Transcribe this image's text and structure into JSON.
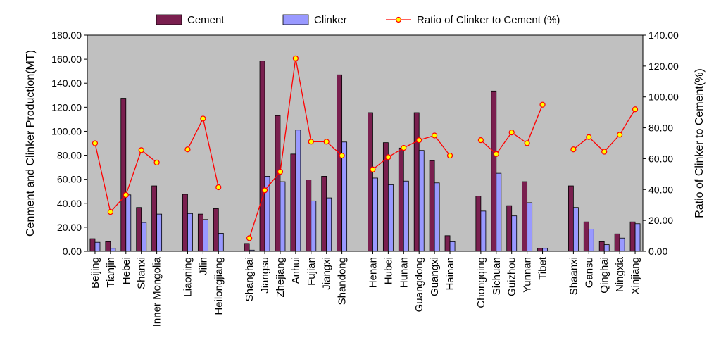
{
  "chart_data": {
    "type": "bar",
    "categories": [
      "Beijing",
      "Tianjin",
      "Hebei",
      "Shanxi",
      "Inner Mongolia",
      null,
      "Liaoning",
      "Jilin",
      "Heilongjiang",
      null,
      "Shanghai",
      "Jiangsu",
      "Zhejiang",
      "Anhui",
      "Fujian",
      "Jiangxi",
      "Shandong",
      null,
      "Henan",
      "Hubei",
      "Hunan",
      "Guangdong",
      "Guangxi",
      "Hainan",
      null,
      "Chongqing",
      "Sichuan",
      "Guizhou",
      "Yunnan",
      "Tibet",
      null,
      "Shaanxi",
      "Gansu",
      "Qinghai",
      "Ningxia",
      "Xinjiang"
    ],
    "series": [
      {
        "name": "Cement",
        "type": "bar",
        "axis": "left",
        "values": [
          10.5,
          8.0,
          127.5,
          36.5,
          54.5,
          null,
          47.5,
          31.0,
          35.5,
          null,
          6.5,
          158.5,
          113.0,
          81.0,
          59.5,
          62.5,
          147.0,
          null,
          115.5,
          90.5,
          86.0,
          115.5,
          75.5,
          13.0,
          null,
          46.0,
          133.5,
          38.0,
          58.0,
          2.5,
          null,
          54.5,
          24.5,
          8.0,
          14.5,
          24.5
        ]
      },
      {
        "name": "Clinker",
        "type": "bar",
        "axis": "left",
        "values": [
          7.5,
          2.5,
          47.0,
          24.0,
          31.0,
          null,
          31.5,
          26.5,
          15.0,
          null,
          1.0,
          62.5,
          58.0,
          101.0,
          42.0,
          44.5,
          91.0,
          null,
          61.0,
          55.5,
          58.5,
          84.0,
          57.0,
          8.0,
          null,
          33.5,
          65.0,
          29.5,
          40.5,
          2.5,
          null,
          36.5,
          18.5,
          5.5,
          11.0,
          23.0
        ]
      },
      {
        "name": "Ratio of Clinker to Cement (%)",
        "type": "line",
        "axis": "right",
        "values": [
          70.0,
          25.5,
          36.5,
          65.5,
          57.5,
          null,
          66.0,
          86.0,
          41.5,
          null,
          8.5,
          39.5,
          51.5,
          125.0,
          71.0,
          71.0,
          62.0,
          null,
          53.0,
          61.0,
          67.0,
          72.0,
          75.0,
          62.0,
          null,
          72.0,
          63.0,
          77.0,
          70.0,
          95.0,
          null,
          66.0,
          74.0,
          64.5,
          75.5,
          92.0
        ]
      }
    ],
    "ylabel": "Cenment and Clinker Production(MT)",
    "y2label": "Ratio of Clinker to Cement(%)",
    "ylim": [
      0,
      180
    ],
    "y2lim": [
      0,
      140
    ],
    "yticks": [
      "0.00",
      "20.00",
      "40.00",
      "60.00",
      "80.00",
      "100.00",
      "120.00",
      "140.00",
      "160.00",
      "180.00"
    ],
    "y2ticks": [
      "0.00",
      "20.00",
      "40.00",
      "60.00",
      "80.00",
      "100.00",
      "120.00",
      "140.00"
    ],
    "legend_position": "top-center",
    "grid": false,
    "colors": {
      "cement": "#7a1f4f",
      "clinker": "#9999ff",
      "ratio_line": "#ff0000",
      "ratio_marker_fill": "#ffff00",
      "plot_bg": "#c0c0c0"
    }
  }
}
